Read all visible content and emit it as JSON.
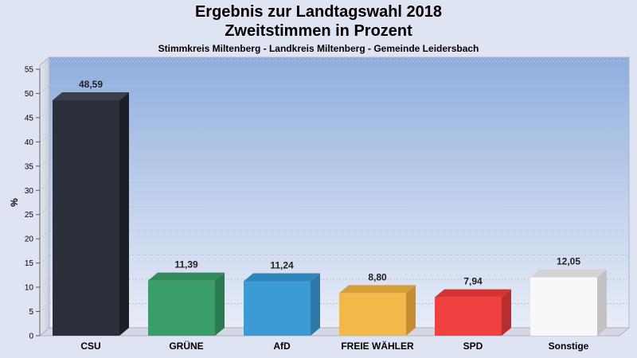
{
  "header": {
    "title": "Ergebnis zur Landtagswahl 2018",
    "subtitle": "Zweitstimmen in Prozent",
    "region": "Stimmkreis Miltenberg - Landkreis Miltenberg - Gemeinde Leidersbach"
  },
  "chart_data": {
    "type": "bar",
    "title": "Ergebnis zur Landtagswahl 2018",
    "subtitle": "Zweitstimmen in Prozent",
    "xlabel": "",
    "ylabel": "%",
    "ylim": [
      0,
      55
    ],
    "ytick_step": 5,
    "grid": true,
    "categories": [
      "CSU",
      "GRÜNE",
      "AfD",
      "FREIE WÄHLER",
      "SPD",
      "Sonstige"
    ],
    "values": [
      48.59,
      11.39,
      11.24,
      8.8,
      7.94,
      12.05
    ],
    "value_labels": [
      "48,59",
      "11,39",
      "11,24",
      "8,80",
      "7,94",
      "12,05"
    ],
    "colors": [
      "#2b2f3a",
      "#3a9e6a",
      "#3d9bd3",
      "#f2b84a",
      "#f04040",
      "#f8f8f8"
    ],
    "side_colors": [
      "#1c1f26",
      "#2c7a52",
      "#2d78a6",
      "#c48f32",
      "#b72e2e",
      "#c2c2c2"
    ],
    "top_colors": [
      "#3a3f4c",
      "#2f8b5a",
      "#2f86b8",
      "#d79e3a",
      "#d43434",
      "#d4d4d4"
    ]
  }
}
